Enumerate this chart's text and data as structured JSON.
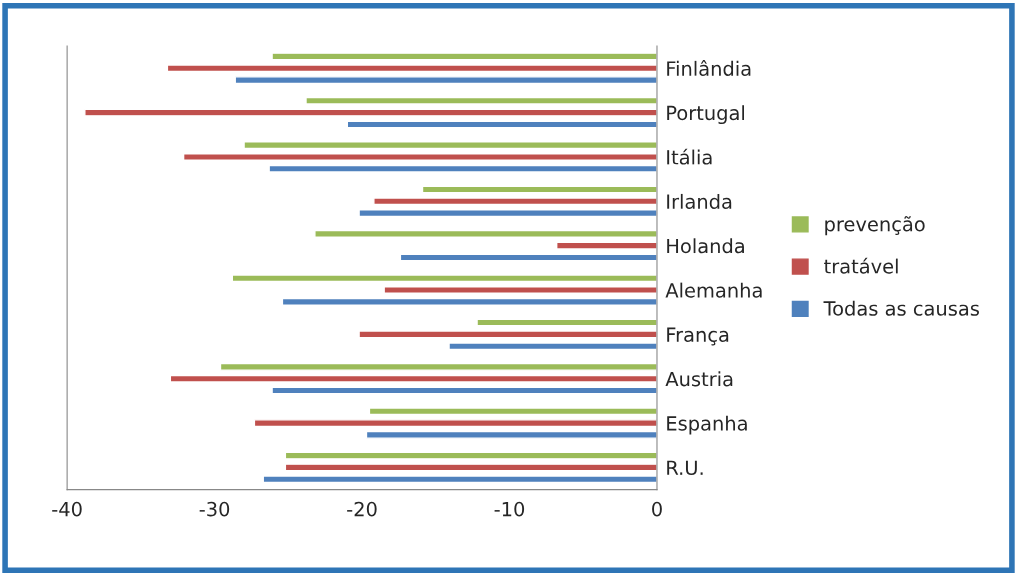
{
  "chart_data": {
    "type": "bar",
    "orientation": "horizontal",
    "categories": [
      "Finlândia",
      "Portugal",
      "Itália",
      "Irlanda",
      "Holanda",
      "Alemanha",
      "França",
      "Austria",
      "Espanha",
      "R.U."
    ],
    "series": [
      {
        "name": "prevenção",
        "color": "#9bbb59",
        "values": [
          -26.1,
          -23.8,
          -28.0,
          -15.9,
          -23.2,
          -28.8,
          -12.2,
          -29.6,
          -19.5,
          -25.2
        ]
      },
      {
        "name": "tratável",
        "color": "#c0504d",
        "values": [
          -33.2,
          -38.8,
          -32.1,
          -19.2,
          -6.8,
          -18.5,
          -20.2,
          -33.0,
          -27.3,
          -25.2
        ]
      },
      {
        "name": "Todas as causas",
        "color": "#4f81bd",
        "values": [
          -28.6,
          -21.0,
          -26.3,
          -20.2,
          -17.4,
          -25.4,
          -14.1,
          -26.1,
          -19.7,
          -26.7
        ]
      }
    ],
    "xlim": [
      -40,
      0
    ],
    "xticks": [
      -40,
      -30,
      -20,
      -10,
      0
    ],
    "grid": false,
    "legend": "right"
  }
}
